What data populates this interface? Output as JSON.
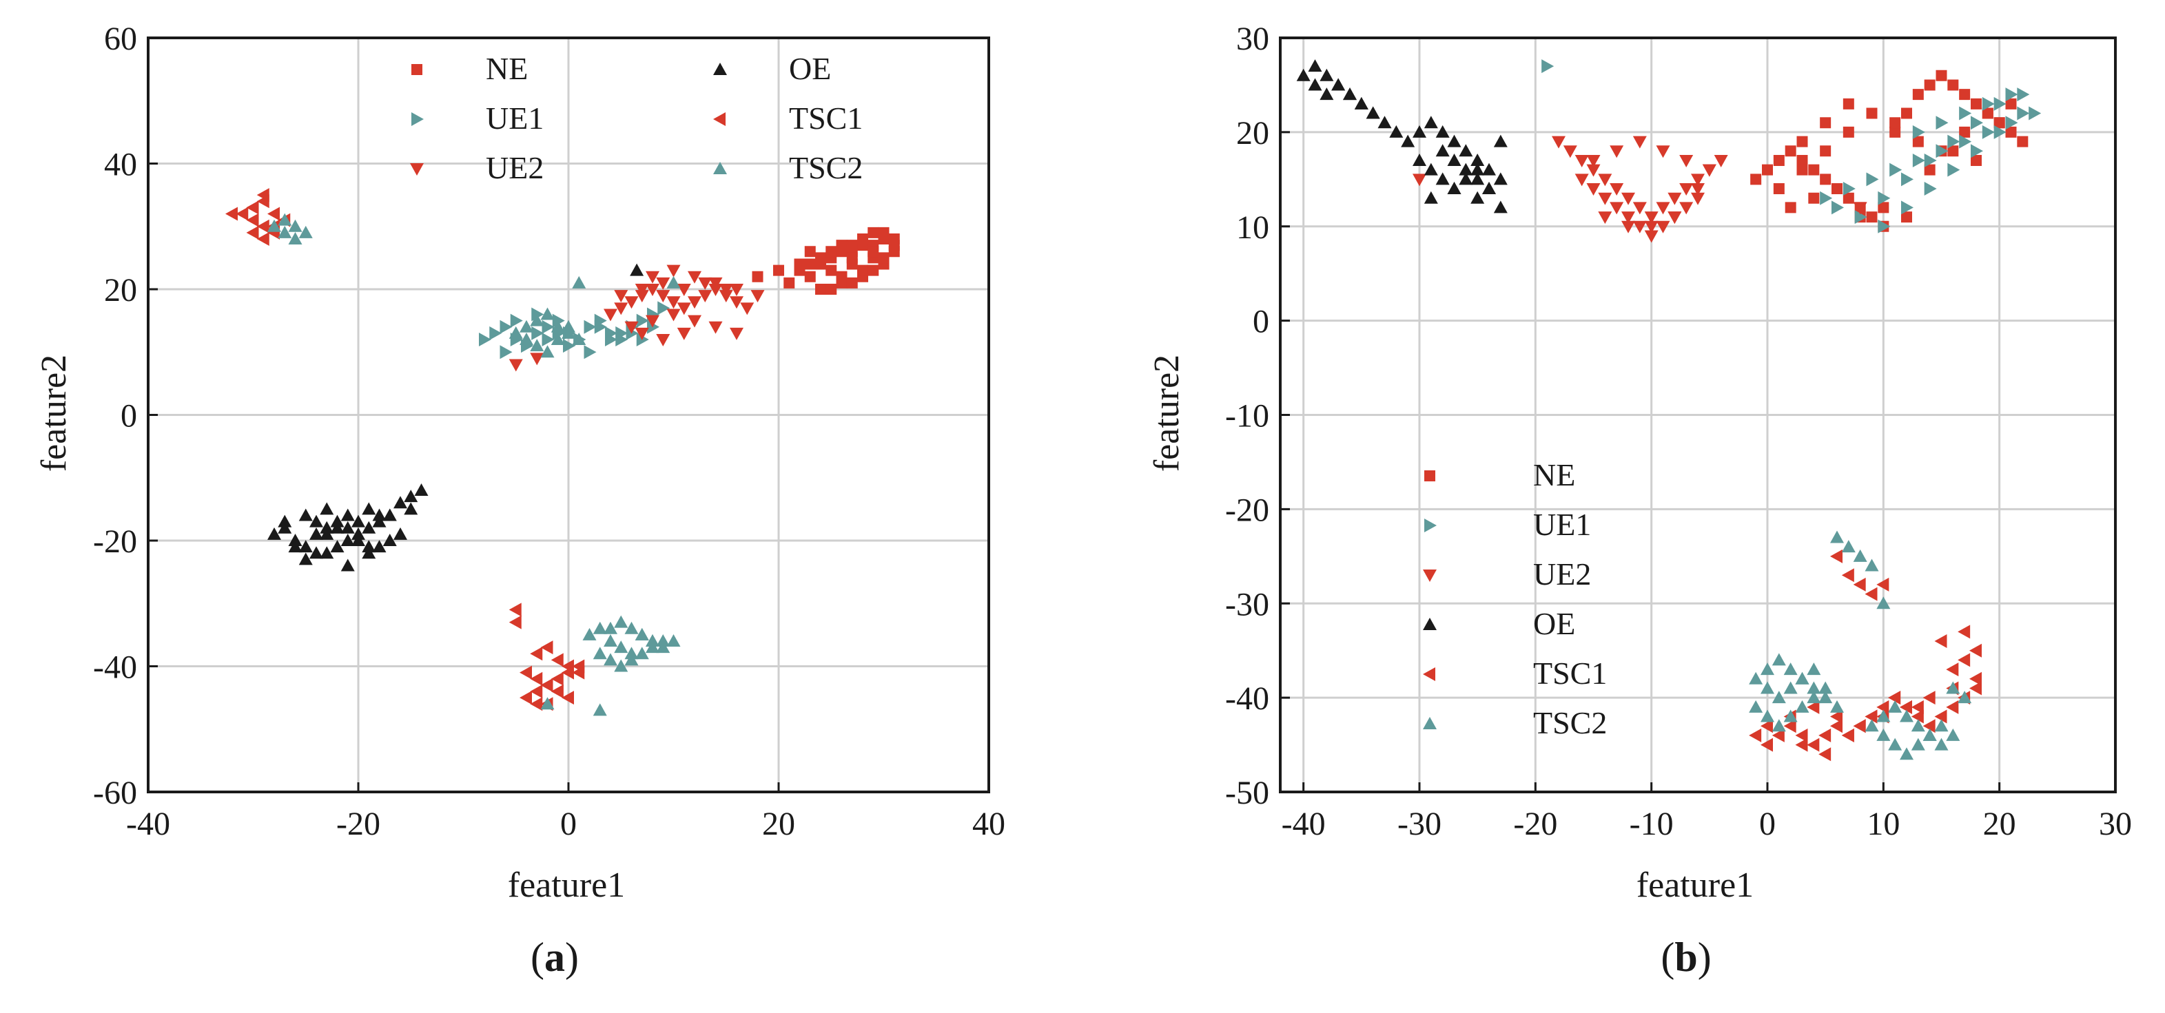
{
  "colors": {
    "NE": "#d7392a",
    "UE1": "#5e9a9a",
    "UE2": "#d7392a",
    "OE": "#1a1a1a",
    "TSC1": "#d7392a",
    "TSC2": "#5e9a9a"
  },
  "markers": {
    "NE": "square",
    "UE1": "triangle-right",
    "UE2": "triangle-down",
    "OE": "triangle-up",
    "TSC1": "triangle-left",
    "TSC2": "triangle-up"
  },
  "chart_data": [
    {
      "type": "scatter",
      "caption_letter": "a",
      "xlabel": "feature1",
      "ylabel": "feature2",
      "xlim": [
        -40,
        40
      ],
      "ylim": [
        -60,
        60
      ],
      "xticks": [
        -40,
        -20,
        0,
        20,
        40
      ],
      "yticks": [
        -60,
        -40,
        -20,
        0,
        20,
        40,
        60
      ],
      "xtick_labels": [
        "-40",
        "-20",
        "0",
        "20",
        "40"
      ],
      "ytick_labels": [
        "-60",
        "-40",
        "-20",
        "0",
        "20",
        "40",
        "60"
      ],
      "grid": true,
      "legend_position": "top",
      "legend": [
        "NE",
        "UE1",
        "UE2",
        "OE",
        "TSC1",
        "TSC2"
      ],
      "series": [
        {
          "name": "NE",
          "x": [
            18,
            20,
            22,
            23,
            24,
            25,
            26,
            27,
            28,
            29,
            30,
            31,
            21,
            23,
            25,
            27,
            29,
            31,
            24,
            26,
            28,
            30,
            22,
            25,
            27,
            29,
            23,
            26,
            28,
            30,
            24,
            27,
            29,
            31,
            26,
            28,
            30,
            25,
            27,
            29
          ],
          "y": [
            22,
            23,
            23,
            24,
            25,
            25,
            26,
            26,
            27,
            27,
            28,
            28,
            21,
            22,
            23,
            24,
            25,
            26,
            20,
            21,
            22,
            24,
            24,
            26,
            27,
            29,
            26,
            27,
            28,
            29,
            24,
            25,
            26,
            27,
            22,
            23,
            25,
            20,
            21,
            23
          ]
        },
        {
          "name": "UE1",
          "x": [
            -8,
            -7,
            -6,
            -5,
            -4,
            -3,
            -2,
            -1,
            0,
            1,
            2,
            3,
            4,
            5,
            6,
            7,
            8,
            9,
            -6,
            -4,
            -2,
            0,
            2,
            4,
            6,
            8,
            -5,
            -3,
            -1,
            1,
            3,
            5,
            7
          ],
          "y": [
            12,
            13,
            14,
            12,
            11,
            13,
            14,
            15,
            13,
            12,
            14,
            15,
            13,
            12,
            14,
            15,
            16,
            17,
            10,
            11,
            12,
            11,
            10,
            12,
            13,
            14,
            15,
            16,
            13,
            12,
            14,
            13,
            12
          ]
        },
        {
          "name": "UE2",
          "x": [
            4,
            5,
            6,
            7,
            8,
            9,
            10,
            11,
            12,
            13,
            14,
            15,
            16,
            17,
            -5,
            -3,
            6,
            8,
            10,
            12,
            14,
            16,
            5,
            7,
            9,
            11,
            13,
            15,
            8,
            10,
            12,
            14,
            16,
            18,
            7,
            9,
            11
          ],
          "y": [
            16,
            17,
            18,
            19,
            20,
            19,
            18,
            17,
            18,
            19,
            20,
            19,
            18,
            17,
            8,
            9,
            14,
            15,
            16,
            15,
            14,
            13,
            19,
            20,
            21,
            20,
            21,
            20,
            22,
            23,
            22,
            21,
            20,
            19,
            13,
            12,
            13
          ]
        },
        {
          "name": "OE",
          "x": [
            -28,
            -27,
            -26,
            -25,
            -24,
            -23,
            -22,
            -21,
            -20,
            -19,
            -18,
            -17,
            -16,
            -15,
            -14,
            -27,
            -25,
            -23,
            -21,
            -19,
            -17,
            -15,
            -26,
            -24,
            -22,
            -20,
            -18,
            -16,
            -25,
            -23,
            -21,
            -19,
            -17,
            -24,
            -22,
            -20,
            -18,
            -23,
            -21,
            -19,
            6.5
          ],
          "y": [
            -19,
            -18,
            -20,
            -21,
            -19,
            -18,
            -17,
            -18,
            -19,
            -18,
            -17,
            -16,
            -14,
            -13,
            -12,
            -17,
            -16,
            -15,
            -16,
            -15,
            -16,
            -15,
            -21,
            -22,
            -21,
            -20,
            -21,
            -19,
            -23,
            -22,
            -24,
            -22,
            -20,
            -17,
            -18,
            -17,
            -16,
            -19,
            -20,
            -21,
            23
          ]
        },
        {
          "name": "TSC1",
          "x": [
            -30,
            -29,
            -28,
            -27,
            -31,
            -30,
            -29,
            -28,
            -32,
            -30,
            -29,
            -28,
            -30,
            -29,
            -3,
            -2,
            -1,
            0,
            1,
            -4,
            -3,
            -2,
            -1,
            0,
            -3,
            -2,
            -1,
            0,
            1,
            -4,
            -3,
            -2,
            -1,
            -5,
            -5
          ],
          "y": [
            33,
            34,
            32,
            31,
            32,
            31,
            30,
            29,
            32,
            33,
            35,
            30,
            29,
            28,
            -38,
            -37,
            -39,
            -40,
            -41,
            -41,
            -42,
            -43,
            -44,
            -45,
            -44,
            -43,
            -42,
            -41,
            -40,
            -45,
            -46,
            -46,
            -44,
            -33,
            -31
          ]
        },
        {
          "name": "TSC2",
          "x": [
            -27,
            -26,
            -25,
            -28,
            -27,
            -26,
            -5,
            -4,
            -3,
            -2,
            -1,
            0,
            1,
            -4,
            -3,
            -2,
            -1,
            0,
            2,
            3,
            4,
            5,
            6,
            7,
            8,
            9,
            10,
            3,
            4,
            5,
            6,
            7,
            8,
            9,
            4,
            5,
            6,
            7,
            8,
            1,
            3,
            -2,
            10
          ],
          "y": [
            31,
            30,
            29,
            30,
            29,
            28,
            13,
            14,
            15,
            16,
            14,
            13,
            12,
            12,
            11,
            10,
            12,
            14,
            -35,
            -34,
            -36,
            -37,
            -38,
            -35,
            -36,
            -37,
            -36,
            -38,
            -39,
            -40,
            -39,
            -38,
            -37,
            -36,
            -34,
            -33,
            -34,
            -35,
            -36,
            21,
            -47,
            -46,
            21
          ]
        }
      ]
    },
    {
      "type": "scatter",
      "caption_letter": "b",
      "xlabel": "feature1",
      "ylabel": "feature2",
      "xlim": [
        -42,
        30
      ],
      "ylim": [
        -50,
        30
      ],
      "xticks": [
        -40,
        -30,
        -20,
        -10,
        0,
        10,
        20,
        30
      ],
      "yticks": [
        -50,
        -40,
        -30,
        -20,
        -10,
        0,
        10,
        20,
        30
      ],
      "xtick_labels": [
        "-40",
        "-30",
        "-20",
        "-10",
        "0",
        "10",
        "20",
        "30"
      ],
      "ytick_labels": [
        "-50",
        "-40",
        "-30",
        "-20",
        "-10",
        "0",
        "10",
        "20",
        "30"
      ],
      "grid": true,
      "legend_position": "center-left",
      "legend": [
        "NE",
        "UE1",
        "UE2",
        "OE",
        "TSC1",
        "TSC2"
      ],
      "series": [
        {
          "name": "NE",
          "x": [
            -1,
            0,
            1,
            2,
            3,
            4,
            5,
            6,
            7,
            8,
            9,
            10,
            11,
            12,
            13,
            14,
            15,
            16,
            17,
            18,
            19,
            20,
            21,
            22,
            2,
            4,
            6,
            8,
            10,
            12,
            14,
            16,
            18,
            20,
            3,
            5,
            7,
            9,
            11,
            13,
            15,
            17,
            19,
            21,
            1,
            3,
            5,
            7,
            9
          ],
          "y": [
            15,
            16,
            17,
            18,
            17,
            16,
            15,
            14,
            13,
            12,
            11,
            12,
            20,
            22,
            24,
            25,
            26,
            25,
            24,
            23,
            22,
            21,
            20,
            19,
            12,
            13,
            14,
            11,
            10,
            11,
            16,
            18,
            17,
            21,
            19,
            21,
            23,
            22,
            21,
            19,
            18,
            20,
            22,
            23,
            14,
            16,
            18,
            20,
            22
          ]
        },
        {
          "name": "UE1",
          "x": [
            5,
            7,
            9,
            11,
            13,
            15,
            17,
            19,
            21,
            23,
            6,
            8,
            10,
            12,
            14,
            16,
            18,
            20,
            22,
            10,
            12,
            14,
            16,
            18,
            20,
            22,
            13,
            15,
            17,
            19,
            21,
            -19
          ],
          "y": [
            13,
            14,
            15,
            16,
            17,
            18,
            19,
            20,
            21,
            22,
            12,
            11,
            10,
            12,
            14,
            16,
            18,
            20,
            22,
            13,
            15,
            17,
            19,
            21,
            23,
            24,
            20,
            21,
            22,
            23,
            24,
            27
          ]
        },
        {
          "name": "UE2",
          "x": [
            -17,
            -16,
            -15,
            -14,
            -13,
            -12,
            -11,
            -10,
            -9,
            -8,
            -7,
            -6,
            -5,
            -4,
            -16,
            -15,
            -14,
            -13,
            -12,
            -11,
            -10,
            -9,
            -8,
            -7,
            -6,
            -15,
            -13,
            -11,
            -9,
            -7,
            -5,
            -14,
            -12,
            -10,
            -8,
            -6,
            -30,
            -18,
            8
          ],
          "y": [
            18,
            17,
            16,
            15,
            14,
            13,
            12,
            11,
            12,
            13,
            14,
            15,
            16,
            17,
            15,
            14,
            13,
            12,
            11,
            10,
            9,
            10,
            11,
            12,
            13,
            17,
            18,
            19,
            18,
            17,
            16,
            11,
            10,
            10,
            11,
            14,
            15,
            19,
            12
          ]
        },
        {
          "name": "OE",
          "x": [
            -40,
            -39,
            -38,
            -37,
            -36,
            -35,
            -34,
            -33,
            -32,
            -31,
            -30,
            -29,
            -28,
            -27,
            -26,
            -25,
            -24,
            -23,
            -39,
            -38,
            -37,
            -36,
            -35,
            -34,
            -30,
            -29,
            -28,
            -27,
            -26,
            -25,
            -24,
            -23,
            -28,
            -27,
            -26,
            -25,
            -24,
            -29,
            -27,
            -25,
            -23
          ],
          "y": [
            26,
            27,
            26,
            25,
            24,
            23,
            22,
            21,
            20,
            19,
            20,
            21,
            20,
            19,
            18,
            17,
            16,
            15,
            25,
            24,
            25,
            24,
            23,
            22,
            17,
            16,
            15,
            14,
            15,
            16,
            14,
            19,
            18,
            17,
            16,
            15,
            14,
            13,
            14,
            13,
            12
          ]
        },
        {
          "name": "TSC1",
          "x": [
            -1,
            0,
            1,
            2,
            3,
            4,
            5,
            6,
            7,
            8,
            9,
            10,
            11,
            12,
            13,
            14,
            15,
            16,
            17,
            18,
            0,
            2,
            4,
            6,
            8,
            10,
            12,
            14,
            16,
            18,
            6,
            7,
            8,
            9,
            10,
            16,
            17,
            18,
            15,
            17,
            3,
            5,
            7,
            9,
            11,
            13
          ],
          "y": [
            -44,
            -45,
            -44,
            -43,
            -44,
            -45,
            -44,
            -43,
            -44,
            -43,
            -42,
            -41,
            -40,
            -41,
            -42,
            -43,
            -42,
            -41,
            -40,
            -39,
            -43,
            -42,
            -41,
            -42,
            -43,
            -42,
            -41,
            -40,
            -39,
            -38,
            -25,
            -27,
            -28,
            -29,
            -28,
            -37,
            -36,
            -35,
            -34,
            -33,
            -45,
            -46,
            -44,
            -42,
            -40,
            -41
          ]
        },
        {
          "name": "TSC2",
          "x": [
            -1,
            0,
            1,
            2,
            3,
            4,
            5,
            6,
            -1,
            0,
            1,
            2,
            3,
            4,
            5,
            0,
            1,
            2,
            3,
            4,
            9,
            10,
            11,
            12,
            13,
            14,
            15,
            10,
            11,
            12,
            13,
            14,
            15,
            16,
            6,
            7,
            8,
            9,
            10,
            16,
            17
          ],
          "y": [
            -38,
            -39,
            -40,
            -39,
            -38,
            -39,
            -40,
            -41,
            -41,
            -42,
            -43,
            -42,
            -41,
            -40,
            -39,
            -37,
            -36,
            -37,
            -38,
            -37,
            -43,
            -44,
            -45,
            -46,
            -45,
            -44,
            -43,
            -42,
            -41,
            -42,
            -43,
            -44,
            -45,
            -44,
            -23,
            -24,
            -25,
            -26,
            -30,
            -39,
            -40
          ]
        }
      ]
    }
  ]
}
